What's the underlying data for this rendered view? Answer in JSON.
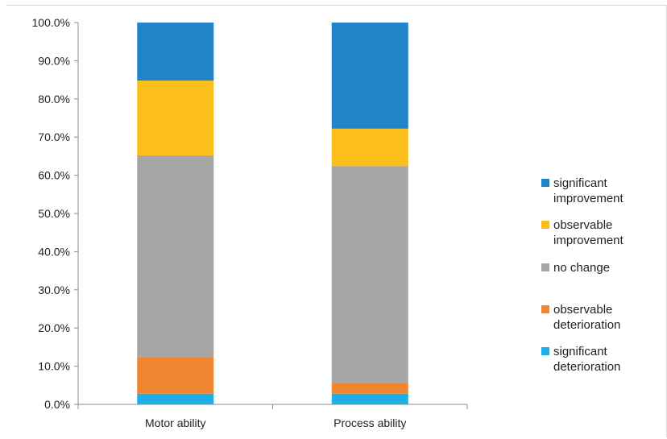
{
  "chart_data": {
    "type": "bar",
    "stacked": true,
    "categories": [
      "Motor ability",
      "Process ability"
    ],
    "series": [
      {
        "name": "significant deterioration",
        "color": "#1db0e6",
        "values": [
          2.8,
          2.8
        ]
      },
      {
        "name": "observable deterioration",
        "color": "#f08532",
        "values": [
          9.6,
          2.7
        ]
      },
      {
        "name": "no change",
        "color": "#a6a6a6",
        "values": [
          52.8,
          56.9
        ]
      },
      {
        "name": "observable improvement",
        "color": "#fcbe1a",
        "values": [
          19.6,
          9.8
        ]
      },
      {
        "name": "significant improvement",
        "color": "#1f84c8",
        "values": [
          15.2,
          27.8
        ]
      }
    ],
    "yticks": [
      "0.0%",
      "10.0%",
      "20.0%",
      "30.0%",
      "40.0%",
      "50.0%",
      "60.0%",
      "70.0%",
      "80.0%",
      "90.0%",
      "100.0%"
    ],
    "ylim": [
      0,
      100
    ],
    "legend": {
      "position": "right",
      "entries": [
        {
          "lines": [
            "significant",
            "improvement"
          ],
          "color": "#1f84c8"
        },
        {
          "lines": [
            "observable",
            "improvement"
          ],
          "color": "#fcbe1a"
        },
        {
          "lines": [
            "no change"
          ],
          "color": "#a6a6a6"
        },
        {
          "lines": [
            "observable",
            "deterioration"
          ],
          "color": "#f08532"
        },
        {
          "lines": [
            "significant",
            "deterioration"
          ],
          "color": "#1db0e6"
        }
      ]
    }
  }
}
